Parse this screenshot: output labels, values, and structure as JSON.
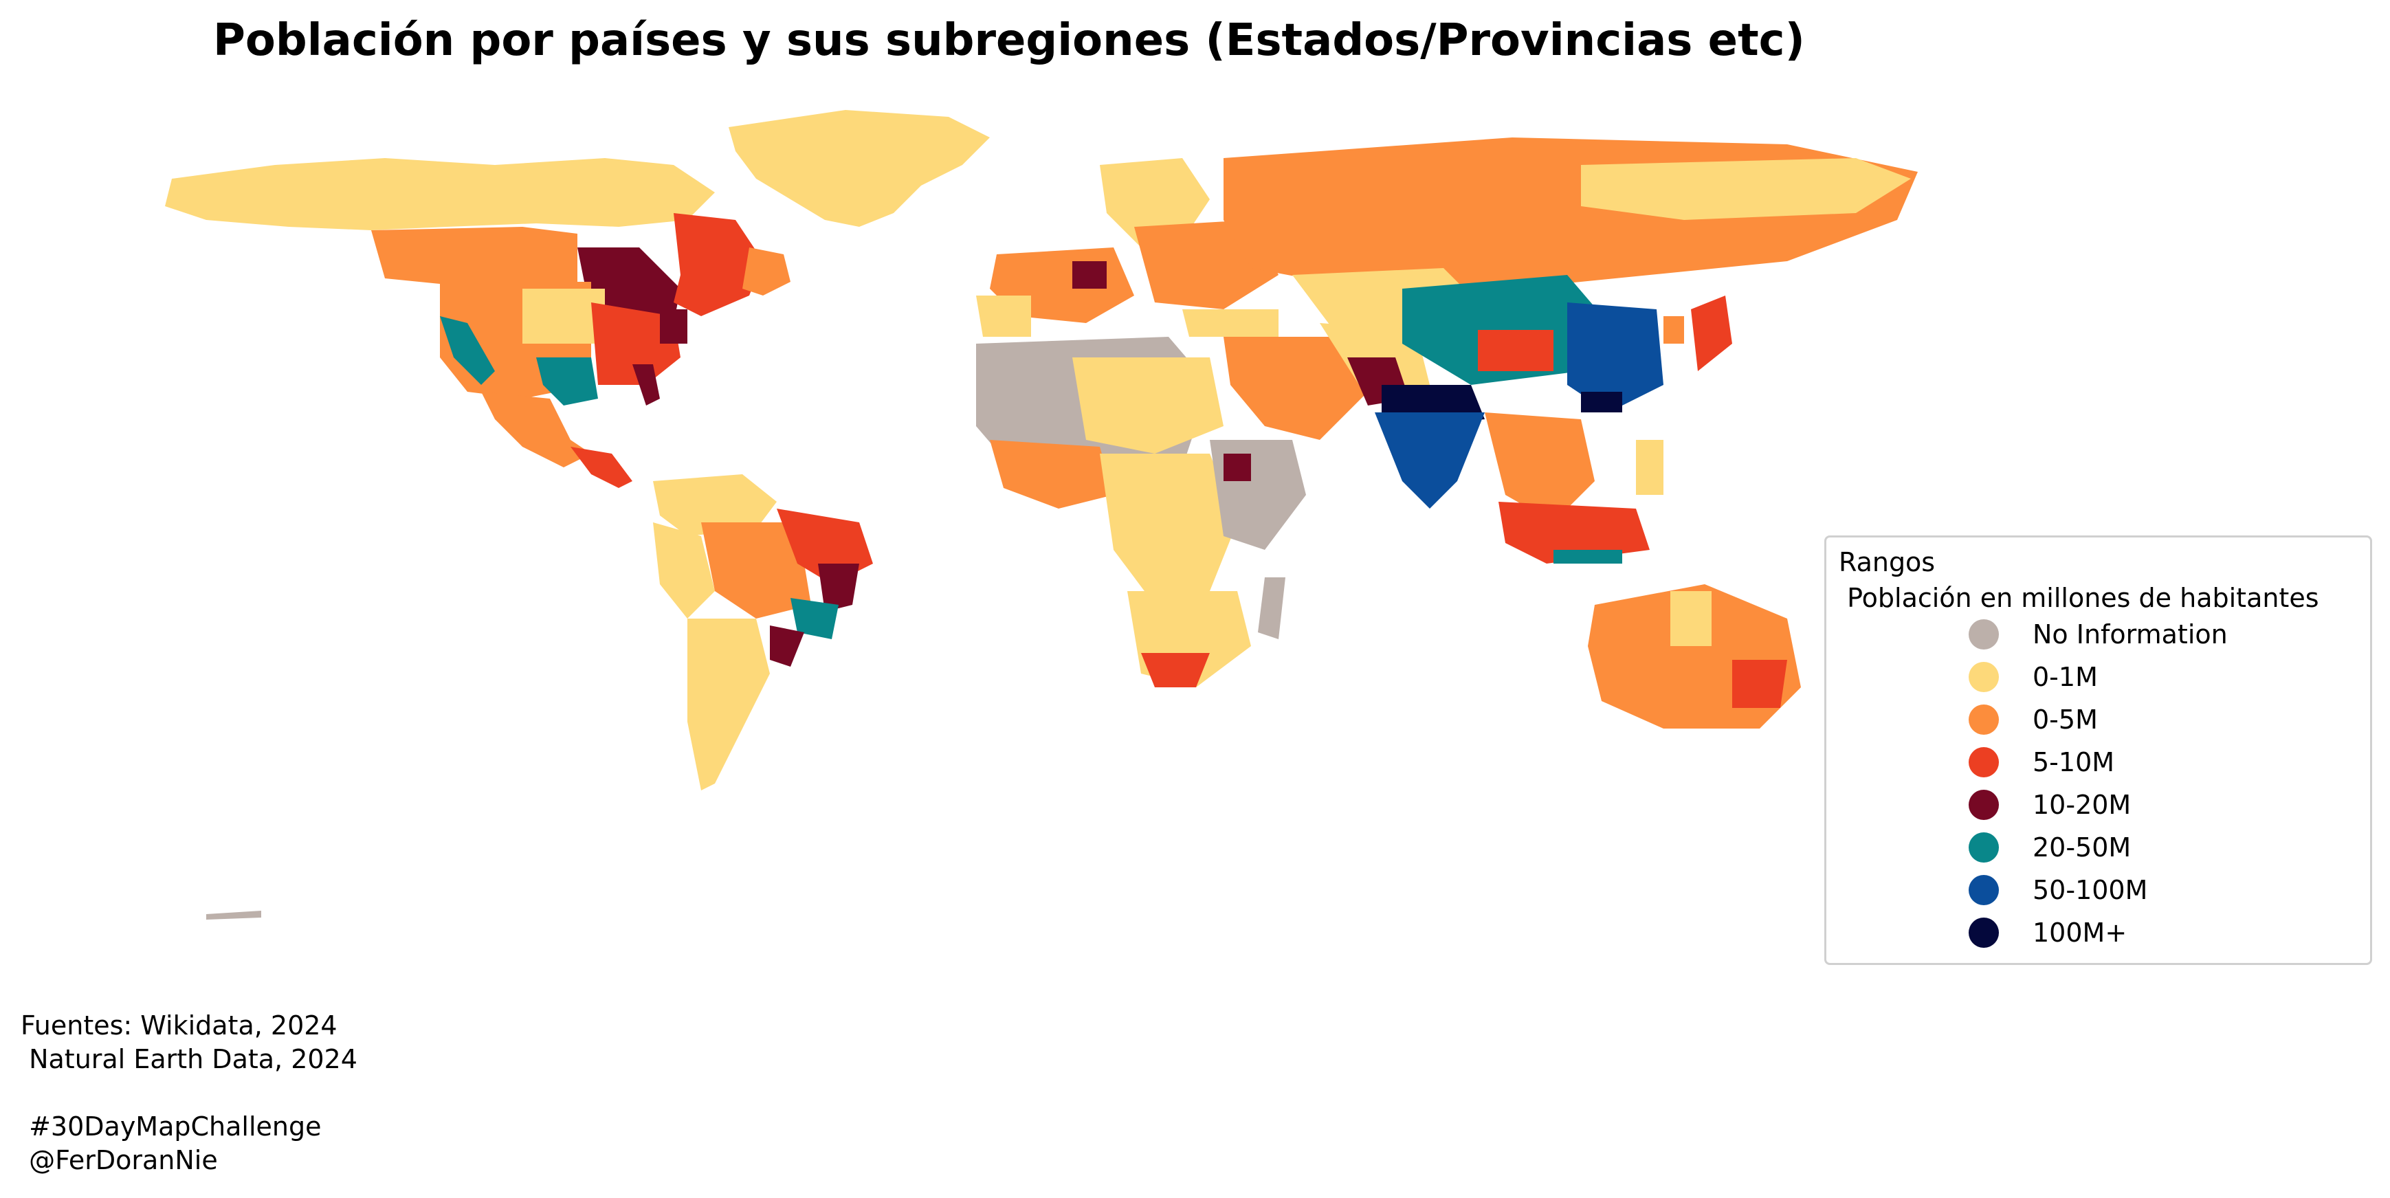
{
  "title": "Población por países y sus subregiones (Estados/Provincias etc)",
  "legend": {
    "title": "Rangos\n Población en millones de habitantes",
    "items": [
      {
        "label": "No Information",
        "color": "#bcb0aa"
      },
      {
        "label": "0-1M",
        "color": "#fdd97a"
      },
      {
        "label": "0-5M",
        "color": "#fc8d3c"
      },
      {
        "label": "5-10M",
        "color": "#ec3f22"
      },
      {
        "label": "10-20M",
        "color": "#760824"
      },
      {
        "label": "20-50M",
        "color": "#09878a"
      },
      {
        "label": "50-100M",
        "color": "#0b4e9c"
      },
      {
        "label": "100M+",
        "color": "#04083c"
      }
    ]
  },
  "sources": {
    "lines": [
      "Fuentes: Wikidata, 2024",
      " Natural Earth Data, 2024",
      "",
      " #30DayMapChallenge",
      " @FerDoranNie"
    ]
  }
}
